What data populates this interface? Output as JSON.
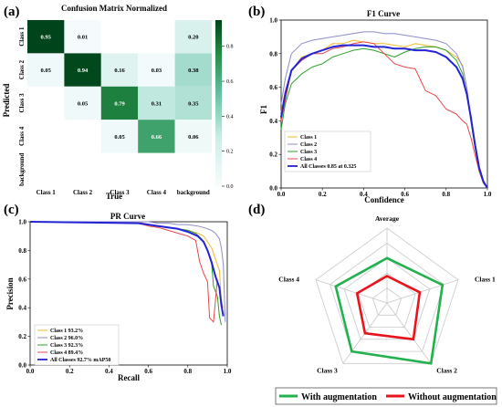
{
  "panels": {
    "a": {
      "label": "(a)"
    },
    "b": {
      "label": "(b)"
    },
    "c": {
      "label": "(c)"
    },
    "d": {
      "label": "(d)"
    }
  },
  "chart_data": [
    {
      "type": "heatmap",
      "title": "Confusion Matrix Normalized",
      "xlabel": "True",
      "ylabel": "Predicted",
      "x_categories": [
        "Class 1",
        "Class 2",
        "Class 3",
        "Class 4",
        "background"
      ],
      "y_categories": [
        "Class 1",
        "Class 2",
        "Class 3",
        "Class 4",
        "background"
      ],
      "values": [
        [
          0.95,
          0.01,
          null,
          null,
          0.2
        ],
        [
          0.05,
          0.94,
          0.16,
          0.03,
          0.38
        ],
        [
          null,
          0.05,
          0.79,
          0.31,
          0.35
        ],
        [
          null,
          null,
          0.05,
          0.66,
          0.06
        ],
        [
          null,
          null,
          null,
          null,
          null
        ]
      ],
      "colorbar": {
        "min": 0.0,
        "max": 0.95,
        "ticks": [
          "0.0",
          "0.2",
          "0.4",
          "0.6",
          "0.8"
        ],
        "tick_values": [
          0.0,
          0.2,
          0.4,
          0.6,
          0.8
        ]
      },
      "colors": {
        "low": "#f7fcfd",
        "high": "#00441b"
      }
    },
    {
      "type": "line",
      "title": "F1 Curve",
      "xlabel": "Confidence",
      "ylabel": "F1",
      "xlim": [
        0,
        1
      ],
      "ylim": [
        0,
        1
      ],
      "xticks": [
        "0.0",
        "0.2",
        "0.4",
        "0.6",
        "0.8",
        "1.0"
      ],
      "yticks": [
        "0.0",
        "0.2",
        "0.4",
        "0.6",
        "0.8",
        "1.0"
      ],
      "tick_values": [
        0,
        0.2,
        0.4,
        0.6,
        0.8,
        1.0
      ],
      "legend_position": "lower-left",
      "x": [
        0,
        0.02,
        0.05,
        0.1,
        0.15,
        0.2,
        0.25,
        0.3,
        0.35,
        0.4,
        0.45,
        0.5,
        0.55,
        0.6,
        0.65,
        0.7,
        0.75,
        0.8,
        0.85,
        0.88,
        0.9,
        0.92,
        0.94,
        0.96,
        0.98,
        1.0
      ],
      "series": [
        {
          "name": "Class 1",
          "color": "#f5b82e",
          "width": 1,
          "values": [
            0.45,
            0.58,
            0.7,
            0.78,
            0.8,
            0.82,
            0.86,
            0.86,
            0.88,
            0.87,
            0.86,
            0.86,
            0.85,
            0.84,
            0.86,
            0.85,
            0.84,
            0.82,
            0.78,
            0.73,
            0.6,
            0.4,
            0.25,
            0.12,
            0.04,
            0.0
          ]
        },
        {
          "name": "Class 2",
          "color": "#8c8cc8",
          "width": 1,
          "values": [
            0.5,
            0.65,
            0.8,
            0.86,
            0.88,
            0.89,
            0.9,
            0.91,
            0.92,
            0.93,
            0.93,
            0.92,
            0.92,
            0.91,
            0.9,
            0.89,
            0.88,
            0.86,
            0.8,
            0.72,
            0.6,
            0.42,
            0.27,
            0.12,
            0.04,
            0.0
          ]
        },
        {
          "name": "Class 3",
          "color": "#2ca02c",
          "width": 1,
          "values": [
            0.35,
            0.5,
            0.62,
            0.68,
            0.72,
            0.74,
            0.78,
            0.8,
            0.82,
            0.83,
            0.82,
            0.8,
            0.78,
            0.81,
            0.83,
            0.84,
            0.84,
            0.82,
            0.76,
            0.68,
            0.56,
            0.4,
            0.24,
            0.1,
            0.03,
            0.0
          ]
        },
        {
          "name": "Class 4",
          "color": "#e8474a",
          "width": 1,
          "values": [
            0.4,
            0.52,
            0.7,
            0.76,
            0.8,
            0.8,
            0.83,
            0.84,
            0.86,
            0.87,
            0.86,
            0.8,
            0.74,
            0.72,
            0.71,
            0.58,
            0.55,
            0.47,
            0.44,
            0.4,
            0.38,
            0.3,
            0.2,
            0.1,
            0.03,
            0.0
          ]
        },
        {
          "name": "All Classes 0.85 at 0.325",
          "color": "#2323d6",
          "width": 2,
          "values": [
            0.42,
            0.56,
            0.7,
            0.77,
            0.8,
            0.82,
            0.84,
            0.85,
            0.85,
            0.85,
            0.84,
            0.84,
            0.83,
            0.83,
            0.82,
            0.82,
            0.81,
            0.78,
            0.72,
            0.65,
            0.56,
            0.42,
            0.26,
            0.12,
            0.04,
            0.0
          ]
        }
      ]
    },
    {
      "type": "line",
      "title": "PR Curve",
      "xlabel": "Recall",
      "ylabel": "Precision",
      "xlim": [
        0,
        1
      ],
      "ylim": [
        0,
        1
      ],
      "xticks": [
        "0.0",
        "0.2",
        "0.4",
        "0.6",
        "0.8",
        "1.0"
      ],
      "yticks": [
        "0.0",
        "0.2",
        "0.4",
        "0.6",
        "0.8",
        "1.0"
      ],
      "tick_values": [
        0,
        0.2,
        0.4,
        0.6,
        0.8,
        1.0
      ],
      "legend_position": "lower-left",
      "series": [
        {
          "name": "Class 1 93.2%",
          "color": "#f5b82e",
          "width": 1,
          "x": [
            0,
            0.55,
            0.6,
            0.65,
            0.7,
            0.75,
            0.8,
            0.85,
            0.88,
            0.9,
            0.92,
            0.94,
            0.96,
            0.97,
            0.98
          ],
          "y": [
            1.0,
            1.0,
            0.98,
            0.97,
            0.96,
            0.95,
            0.94,
            0.92,
            0.9,
            0.86,
            0.82,
            0.74,
            0.66,
            0.45,
            0.4
          ]
        },
        {
          "name": "Class 2 96.0%",
          "color": "#8c8cc8",
          "width": 1,
          "x": [
            0,
            0.6,
            0.65,
            0.7,
            0.75,
            0.8,
            0.85,
            0.88,
            0.9,
            0.92,
            0.94,
            0.96,
            0.97,
            0.98,
            0.99
          ],
          "y": [
            1.0,
            1.0,
            0.99,
            0.99,
            0.98,
            0.98,
            0.97,
            0.96,
            0.95,
            0.94,
            0.92,
            0.88,
            0.82,
            0.7,
            0.3
          ]
        },
        {
          "name": "Class 3 92.3%",
          "color": "#2ca02c",
          "width": 1,
          "x": [
            0,
            0.55,
            0.6,
            0.65,
            0.7,
            0.75,
            0.8,
            0.84,
            0.87,
            0.9,
            0.92,
            0.93,
            0.95,
            0.96,
            0.97
          ],
          "y": [
            1.0,
            0.99,
            0.98,
            0.97,
            0.96,
            0.95,
            0.94,
            0.92,
            0.88,
            0.8,
            0.72,
            0.55,
            0.48,
            0.34,
            0.28
          ]
        },
        {
          "name": "Class 4 89.4%",
          "color": "#e8474a",
          "width": 1,
          "x": [
            0,
            0.55,
            0.6,
            0.65,
            0.7,
            0.75,
            0.8,
            0.84,
            0.86,
            0.88,
            0.9,
            0.91,
            0.93,
            0.95
          ],
          "y": [
            1.0,
            0.99,
            0.97,
            0.96,
            0.94,
            0.92,
            0.9,
            0.87,
            0.72,
            0.64,
            0.58,
            0.33,
            0.3,
            0.6
          ]
        },
        {
          "name": "All Classes 92.7% mAP50",
          "color": "#2323d6",
          "width": 2,
          "x": [
            0,
            0.55,
            0.6,
            0.65,
            0.7,
            0.75,
            0.8,
            0.85,
            0.88,
            0.9,
            0.92,
            0.94,
            0.96,
            0.97,
            0.98
          ],
          "y": [
            1.0,
            0.99,
            0.98,
            0.97,
            0.96,
            0.95,
            0.93,
            0.9,
            0.86,
            0.8,
            0.72,
            0.62,
            0.54,
            0.42,
            0.34
          ]
        }
      ]
    },
    {
      "type": "radar",
      "axes": [
        "Average",
        "Class 1",
        "Class 2",
        "Class 3",
        "Class 4"
      ],
      "rmax": 1.0,
      "rings": 5,
      "series": [
        {
          "name": "With augmentation",
          "color": "#22b14c",
          "values": [
            0.6,
            0.78,
            1.0,
            0.8,
            0.72
          ]
        },
        {
          "name": "Without augmentation",
          "color": "#e8141b",
          "values": [
            0.36,
            0.46,
            0.6,
            0.5,
            0.42
          ]
        }
      ]
    }
  ]
}
